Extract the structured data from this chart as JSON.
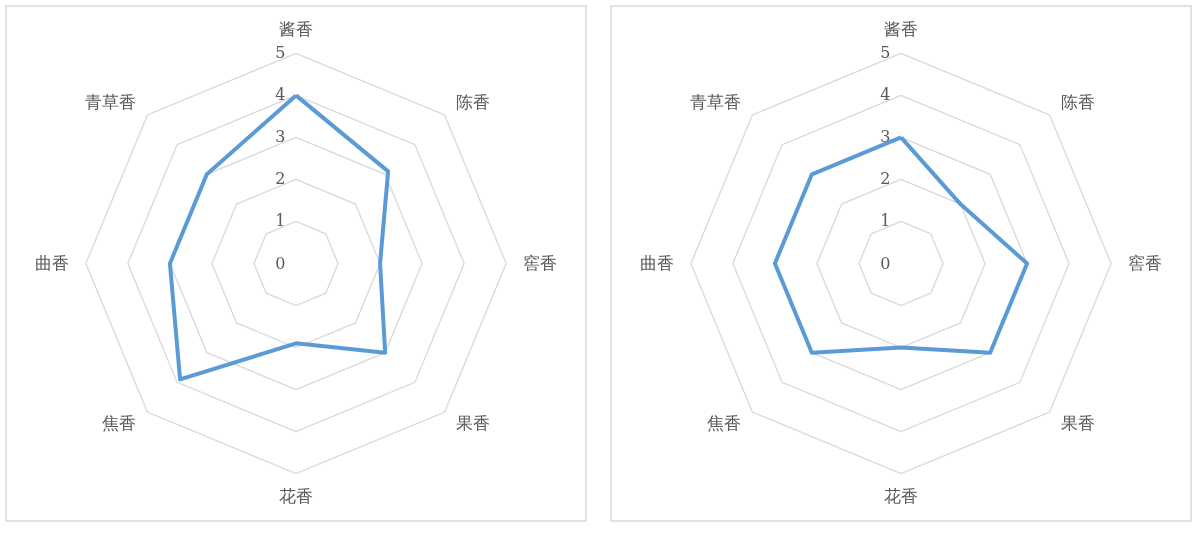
{
  "chart_data": [
    {
      "type": "radar",
      "categories": [
        "酱香",
        "陈香",
        "窖香",
        "果香",
        "花香",
        "焦香",
        "曲香",
        "青草香"
      ],
      "ylim": [
        0,
        5
      ],
      "yticks": [
        0,
        1,
        2,
        3,
        4,
        5
      ],
      "grid": true,
      "series": [
        {
          "color": "#5b9bd5",
          "values": [
            4,
            3.1,
            2,
            3,
            1.9,
            3.9,
            3,
            3
          ]
        }
      ]
    },
    {
      "type": "radar",
      "categories": [
        "酱香",
        "陈香",
        "窖香",
        "果香",
        "花香",
        "焦香",
        "曲香",
        "青草香"
      ],
      "ylim": [
        0,
        5
      ],
      "yticks": [
        0,
        1,
        2,
        3,
        4,
        5
      ],
      "grid": true,
      "series": [
        {
          "color": "#5b9bd5",
          "values": [
            3,
            2,
            3,
            3,
            2,
            3,
            3,
            3
          ]
        }
      ]
    }
  ]
}
